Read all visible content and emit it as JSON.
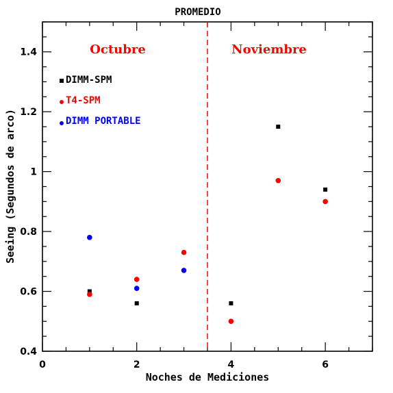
{
  "chart_data": {
    "type": "scatter",
    "title": "PROMEDIO",
    "xlabel": "Noches de Mediciones",
    "ylabel": "Seeing (Segundos de arco)",
    "xlim": [
      0,
      7
    ],
    "ylim": [
      0.4,
      1.5
    ],
    "xticks": [
      0,
      2,
      4,
      6
    ],
    "yticks": [
      0.4,
      0.6,
      0.8,
      1.0,
      1.2,
      1.4
    ],
    "ytick_labels": [
      "0.4",
      "0.6",
      "0.8",
      "1",
      "1.2",
      "1.4"
    ],
    "grid": false,
    "legend_placement": "top-left",
    "divider_x": 3.5,
    "annotations": [
      {
        "text": "Octubre",
        "color": "#ff0000"
      },
      {
        "text": "Noviembre",
        "color": "#ff0000"
      }
    ],
    "series": [
      {
        "name": "DIMM-SPM",
        "marker": "square",
        "color": "#000000",
        "x": [
          1,
          2,
          4,
          5,
          6
        ],
        "y": [
          0.6,
          0.56,
          0.56,
          1.15,
          0.94
        ]
      },
      {
        "name": "T4-SPM",
        "marker": "circle",
        "color": "#ff0000",
        "x": [
          1,
          2,
          3,
          4,
          5,
          6
        ],
        "y": [
          0.59,
          0.64,
          0.73,
          0.5,
          0.97,
          0.9
        ]
      },
      {
        "name": "DIMM PORTABLE",
        "marker": "circle",
        "color": "#0000ff",
        "x": [
          1,
          2,
          3
        ],
        "y": [
          0.78,
          0.61,
          0.67
        ]
      }
    ]
  }
}
